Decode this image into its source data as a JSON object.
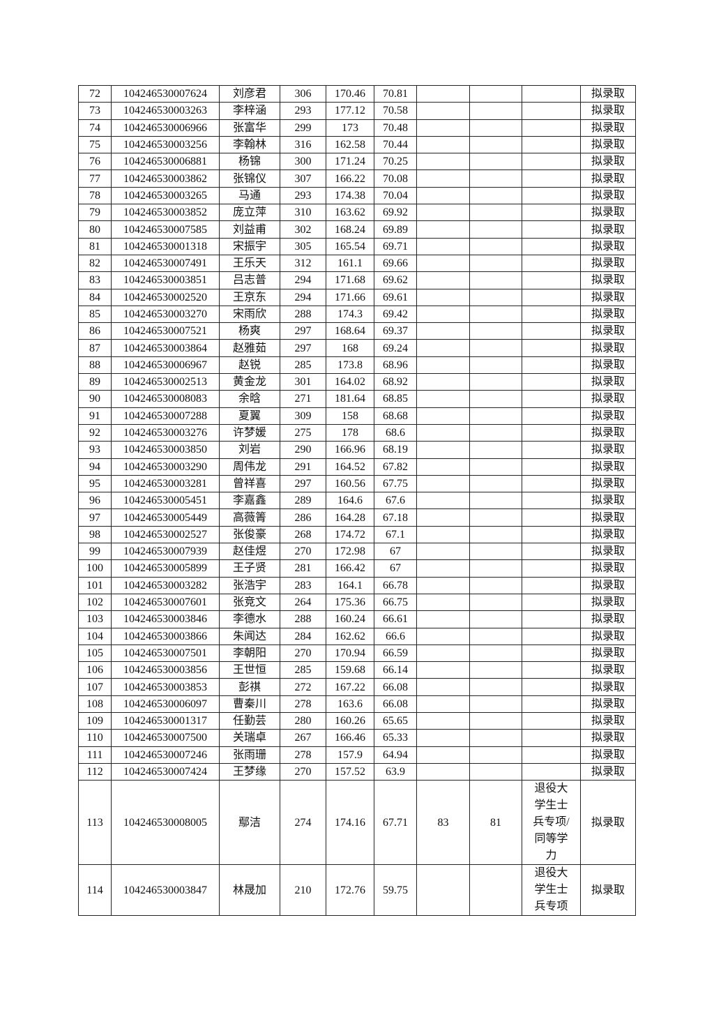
{
  "table": {
    "rows": [
      [
        "72",
        "104246530007624",
        "刘彦君",
        "306",
        "170.46",
        "70.81",
        "",
        "",
        "",
        "拟录取"
      ],
      [
        "73",
        "104246530003263",
        "李梓涵",
        "293",
        "177.12",
        "70.58",
        "",
        "",
        "",
        "拟录取"
      ],
      [
        "74",
        "104246530006966",
        "张富华",
        "299",
        "173",
        "70.48",
        "",
        "",
        "",
        "拟录取"
      ],
      [
        "75",
        "104246530003256",
        "李翰林",
        "316",
        "162.58",
        "70.44",
        "",
        "",
        "",
        "拟录取"
      ],
      [
        "76",
        "104246530006881",
        "杨锦",
        "300",
        "171.24",
        "70.25",
        "",
        "",
        "",
        "拟录取"
      ],
      [
        "77",
        "104246530003862",
        "张锦仪",
        "307",
        "166.22",
        "70.08",
        "",
        "",
        "",
        "拟录取"
      ],
      [
        "78",
        "104246530003265",
        "马通",
        "293",
        "174.38",
        "70.04",
        "",
        "",
        "",
        "拟录取"
      ],
      [
        "79",
        "104246530003852",
        "庞立萍",
        "310",
        "163.62",
        "69.92",
        "",
        "",
        "",
        "拟录取"
      ],
      [
        "80",
        "104246530007585",
        "刘益甫",
        "302",
        "168.24",
        "69.89",
        "",
        "",
        "",
        "拟录取"
      ],
      [
        "81",
        "104246530001318",
        "宋振宇",
        "305",
        "165.54",
        "69.71",
        "",
        "",
        "",
        "拟录取"
      ],
      [
        "82",
        "104246530007491",
        "王乐天",
        "312",
        "161.1",
        "69.66",
        "",
        "",
        "",
        "拟录取"
      ],
      [
        "83",
        "104246530003851",
        "吕志普",
        "294",
        "171.68",
        "69.62",
        "",
        "",
        "",
        "拟录取"
      ],
      [
        "84",
        "104246530002520",
        "王京东",
        "294",
        "171.66",
        "69.61",
        "",
        "",
        "",
        "拟录取"
      ],
      [
        "85",
        "104246530003270",
        "宋雨欣",
        "288",
        "174.3",
        "69.42",
        "",
        "",
        "",
        "拟录取"
      ],
      [
        "86",
        "104246530007521",
        "杨爽",
        "297",
        "168.64",
        "69.37",
        "",
        "",
        "",
        "拟录取"
      ],
      [
        "87",
        "104246530003864",
        "赵雅茹",
        "297",
        "168",
        "69.24",
        "",
        "",
        "",
        "拟录取"
      ],
      [
        "88",
        "104246530006967",
        "赵锐",
        "285",
        "173.8",
        "68.96",
        "",
        "",
        "",
        "拟录取"
      ],
      [
        "89",
        "104246530002513",
        "黄金龙",
        "301",
        "164.02",
        "68.92",
        "",
        "",
        "",
        "拟录取"
      ],
      [
        "90",
        "104246530008083",
        "余晗",
        "271",
        "181.64",
        "68.85",
        "",
        "",
        "",
        "拟录取"
      ],
      [
        "91",
        "104246530007288",
        "夏翼",
        "309",
        "158",
        "68.68",
        "",
        "",
        "",
        "拟录取"
      ],
      [
        "92",
        "104246530003276",
        "许梦媛",
        "275",
        "178",
        "68.6",
        "",
        "",
        "",
        "拟录取"
      ],
      [
        "93",
        "104246530003850",
        "刘岩",
        "290",
        "166.96",
        "68.19",
        "",
        "",
        "",
        "拟录取"
      ],
      [
        "94",
        "104246530003290",
        "周伟龙",
        "291",
        "164.52",
        "67.82",
        "",
        "",
        "",
        "拟录取"
      ],
      [
        "95",
        "104246530003281",
        "曾祥喜",
        "297",
        "160.56",
        "67.75",
        "",
        "",
        "",
        "拟录取"
      ],
      [
        "96",
        "104246530005451",
        "李嘉鑫",
        "289",
        "164.6",
        "67.6",
        "",
        "",
        "",
        "拟录取"
      ],
      [
        "97",
        "104246530005449",
        "高薇箐",
        "286",
        "164.28",
        "67.18",
        "",
        "",
        "",
        "拟录取"
      ],
      [
        "98",
        "104246530002527",
        "张俊豪",
        "268",
        "174.72",
        "67.1",
        "",
        "",
        "",
        "拟录取"
      ],
      [
        "99",
        "104246530007939",
        "赵佳煜",
        "270",
        "172.98",
        "67",
        "",
        "",
        "",
        "拟录取"
      ],
      [
        "100",
        "104246530005899",
        "王子贤",
        "281",
        "166.42",
        "67",
        "",
        "",
        "",
        "拟录取"
      ],
      [
        "101",
        "104246530003282",
        "张浩宇",
        "283",
        "164.1",
        "66.78",
        "",
        "",
        "",
        "拟录取"
      ],
      [
        "102",
        "104246530007601",
        "张竞文",
        "264",
        "175.36",
        "66.75",
        "",
        "",
        "",
        "拟录取"
      ],
      [
        "103",
        "104246530003846",
        "李德水",
        "288",
        "160.24",
        "66.61",
        "",
        "",
        "",
        "拟录取"
      ],
      [
        "104",
        "104246530003866",
        "朱闻达",
        "284",
        "162.62",
        "66.6",
        "",
        "",
        "",
        "拟录取"
      ],
      [
        "105",
        "104246530007501",
        "李朝阳",
        "270",
        "170.94",
        "66.59",
        "",
        "",
        "",
        "拟录取"
      ],
      [
        "106",
        "104246530003856",
        "王世恒",
        "285",
        "159.68",
        "66.14",
        "",
        "",
        "",
        "拟录取"
      ],
      [
        "107",
        "104246530003853",
        "彭祺",
        "272",
        "167.22",
        "66.08",
        "",
        "",
        "",
        "拟录取"
      ],
      [
        "108",
        "104246530006097",
        "曹秦川",
        "278",
        "163.6",
        "66.08",
        "",
        "",
        "",
        "拟录取"
      ],
      [
        "109",
        "104246530001317",
        "任勤芸",
        "280",
        "160.26",
        "65.65",
        "",
        "",
        "",
        "拟录取"
      ],
      [
        "110",
        "104246530007500",
        "关瑞卓",
        "267",
        "166.46",
        "65.33",
        "",
        "",
        "",
        "拟录取"
      ],
      [
        "111",
        "104246530007246",
        "张雨珊",
        "278",
        "157.9",
        "64.94",
        "",
        "",
        "",
        "拟录取"
      ],
      [
        "112",
        "104246530007424",
        "王梦缘",
        "270",
        "157.52",
        "63.9",
        "",
        "",
        "",
        "拟录取"
      ],
      [
        "113",
        "104246530008005",
        "鄢洁",
        "274",
        "174.16",
        "67.71",
        "83",
        "81",
        "退役大学生士兵专项/同等学力",
        "拟录取"
      ],
      [
        "114",
        "104246530003847",
        "林晟加",
        "210",
        "172.76",
        "59.75",
        "",
        "",
        "退役大学生士兵专项",
        "拟录取"
      ]
    ]
  }
}
